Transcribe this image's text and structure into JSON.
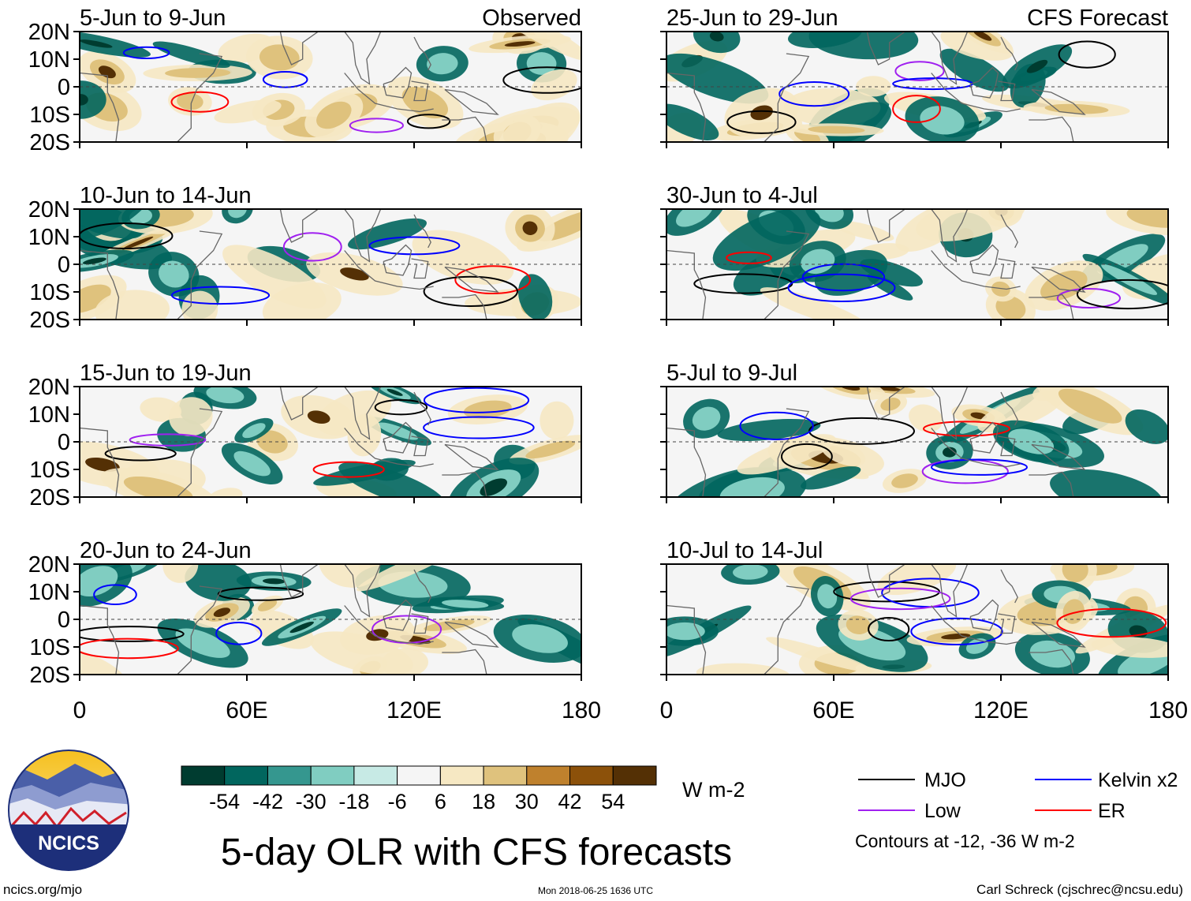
{
  "chart_data": {
    "type": "heatmap",
    "title": "5-day OLR with CFS forecasts",
    "columns": [
      {
        "label": "Observed",
        "panels": [
          "5-Jun to 9-Jun",
          "10-Jun to 14-Jun",
          "15-Jun to 19-Jun",
          "20-Jun to 24-Jun"
        ]
      },
      {
        "label": "CFS Forecast",
        "panels": [
          "25-Jun to 29-Jun",
          "30-Jun to 4-Jul",
          "5-Jul to 9-Jul",
          "10-Jul to 14-Jul"
        ]
      }
    ],
    "x_ticks": [
      "0",
      "60E",
      "120E",
      "180"
    ],
    "x_values": [
      0,
      60,
      120,
      180
    ],
    "y_ticks": [
      "20N",
      "10N",
      "0",
      "10S",
      "20S"
    ],
    "y_values": [
      20,
      10,
      0,
      -10,
      -20
    ],
    "xlim": [
      0,
      180
    ],
    "ylim": [
      -20,
      20
    ],
    "colorbar": {
      "ticks": [
        "-54",
        "-42",
        "-30",
        "-18",
        "-6",
        "6",
        "18",
        "30",
        "42",
        "54"
      ],
      "colors": [
        "#003c30",
        "#01665e",
        "#35978f",
        "#80cdc1",
        "#c7eae5",
        "#f5f5f5",
        "#f6e8c3",
        "#dfc27d",
        "#bf812d",
        "#8c510a",
        "#543005"
      ],
      "units": "W m-2"
    },
    "legend": [
      {
        "name": "MJO",
        "color": "#000000"
      },
      {
        "name": "Kelvin x2",
        "color": "#0000ff"
      },
      {
        "name": "Low",
        "color": "#a020f0"
      },
      {
        "name": "ER",
        "color": "#ff0000"
      }
    ],
    "contour_note": "Contours at -12, -36 W m-2"
  },
  "logo_text": "NCICS",
  "footer": {
    "left": "ncics.org/mjo",
    "center": "Mon 2018-06-25 1636 UTC",
    "right": "Carl Schreck (cjschrec@ncsu.edu)"
  }
}
